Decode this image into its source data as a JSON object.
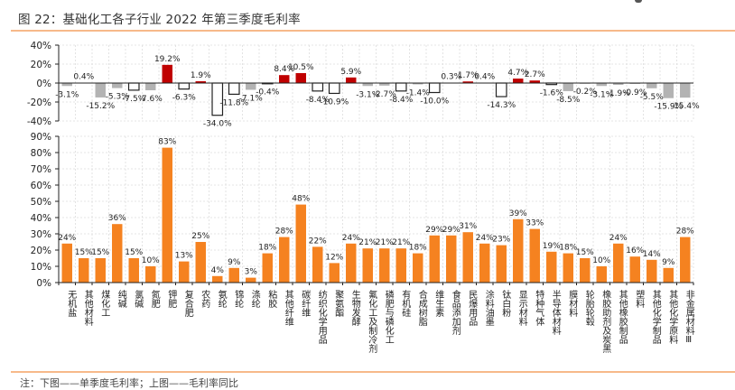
{
  "header": {
    "title": "图 22：基础化工各子行业 2022 年第三季度毛利率"
  },
  "footer": {
    "note": "注：下图——单季度毛利率；上图——毛利率同比"
  },
  "chart_data": [
    {
      "id": "yoy",
      "type": "bar",
      "title": "毛利率同比",
      "ylabel": "",
      "xlabel": "",
      "ylim": [
        -40,
        40
      ],
      "yticks": [
        40,
        20,
        0,
        -20,
        -40
      ],
      "ytick_labels": [
        "40%",
        "20%",
        "0%",
        "-20%",
        "-40%"
      ],
      "grid": true,
      "legend": "none",
      "value_suffix": "%",
      "style_colors": {
        "gray": "#b3b3b3",
        "red": "#c00000",
        "hollow": "#ffffff",
        "hollow_stroke": "#222222"
      },
      "categories": [
        "无机盐",
        "其他材料",
        "煤化工",
        "纯碱",
        "氯碱",
        "氮肥",
        "钾肥",
        "复合肥",
        "农药",
        "氨纶",
        "锦纶",
        "涤纶",
        "粘胶",
        "其他纤维",
        "碳纤维",
        "纺织化学用品",
        "聚氨酯",
        "生物发酵",
        "氟化工及制冷剂",
        "磷肥与磷化工",
        "有机硅",
        "合成树脂",
        "维生素",
        "食品添加剂",
        "民爆用品",
        "涂料油墨",
        "钛白粉",
        "显示材料",
        "特种气体",
        "半导体材料",
        "膜材料",
        "轮胎轮毂",
        "橡胶助剂及炭黑",
        "其他橡胶制品",
        "塑料",
        "其他化学制品",
        "其他化学原料",
        "非金属材料Ⅲ"
      ],
      "values": [
        -3.1,
        0.4,
        -15.2,
        -5.3,
        -7.5,
        -7.6,
        19.2,
        -6.3,
        1.9,
        -34.0,
        -11.8,
        -7.1,
        -0.4,
        8.4,
        10.5,
        -8.4,
        -10.9,
        5.9,
        -3.1,
        -2.7,
        -8.4,
        -1.4,
        -10.0,
        0.3,
        1.7,
        0.4,
        -14.3,
        4.7,
        2.7,
        -1.6,
        -8.5,
        -0.2,
        -3.1,
        -1.9,
        -0.9,
        -5.5,
        -15.9,
        -15.4
      ],
      "labels": [
        "-3.1%",
        "0.4%",
        "-15.2%",
        "-5.3%",
        "-7.5%",
        "-7.6%",
        "19.2%",
        "-6.3%",
        "1.9%",
        "-34.0%",
        "-11.8%",
        "-7.1%",
        "-0.4%",
        "8.4%",
        "10.5%",
        "-8.4%",
        "-10.9%",
        "5.9%",
        "-3.1%",
        "-2.7%",
        "-8.4%",
        "-1.4%",
        "-10.0%",
        "0.3%",
        "1.7%",
        "0.4%",
        "-14.3%",
        "4.7%",
        "2.7%",
        "-1.6%",
        "-8.5%",
        "-0.2%",
        "-3.1%",
        "-1.9%",
        "-0.9%",
        "-5.5%",
        "-15.9%",
        "-15.4%"
      ],
      "styles": [
        "gray",
        "red",
        "gray",
        "gray",
        "hollow",
        "gray",
        "red",
        "hollow",
        "red",
        "hollow",
        "hollow",
        "gray",
        "hollow",
        "red",
        "red",
        "hollow",
        "hollow",
        "red",
        "gray",
        "gray",
        "hollow",
        "gray",
        "hollow",
        "red",
        "red",
        "red",
        "hollow",
        "red",
        "red",
        "hollow",
        "gray",
        "gray",
        "gray",
        "gray",
        "gray",
        "gray",
        "gray",
        "gray"
      ]
    },
    {
      "id": "margin",
      "type": "bar",
      "title": "单季度毛利率",
      "ylabel": "",
      "xlabel": "",
      "ylim": [
        0,
        90
      ],
      "yticks": [
        90,
        80,
        70,
        60,
        50,
        40,
        30,
        20,
        10,
        0
      ],
      "ytick_labels": [
        "90%",
        "80%",
        "70%",
        "60%",
        "50%",
        "40%",
        "30%",
        "20%",
        "10%",
        "0%"
      ],
      "grid": true,
      "legend": "none",
      "color": "#f58220",
      "categories": [
        "无机盐",
        "其他材料",
        "煤化工",
        "纯碱",
        "氯碱",
        "氮肥",
        "钾肥",
        "复合肥",
        "农药",
        "氨纶",
        "锦纶",
        "涤纶",
        "粘胶",
        "其他纤维",
        "碳纤维",
        "纺织化学用品",
        "聚氨酯",
        "生物发酵",
        "氟化工及制冷剂",
        "磷肥与磷化工",
        "有机硅",
        "合成树脂",
        "维生素",
        "食品添加剂",
        "民爆用品",
        "涂料油墨",
        "钛白粉",
        "显示材料",
        "特种气体",
        "半导体材料",
        "膜材料",
        "轮胎轮毂",
        "橡胶助剂及炭黑",
        "其他橡胶制品",
        "塑料",
        "其他化学制品",
        "其他化学原料",
        "非金属材料Ⅲ"
      ],
      "values": [
        24,
        15,
        15,
        36,
        15,
        10,
        83,
        13,
        25,
        4,
        9,
        3,
        18,
        28,
        48,
        22,
        12,
        24,
        21,
        21,
        21,
        18,
        29,
        29,
        31,
        24,
        23,
        39,
        33,
        19,
        18,
        15,
        10,
        24,
        16,
        14,
        9,
        28
      ],
      "labels": [
        "24%",
        "15%",
        "15%",
        "36%",
        "15%",
        "10%",
        "83%",
        "13%",
        "25%",
        "4%",
        "9%",
        "3%",
        "18%",
        "28%",
        "48%",
        "22%",
        "12%",
        "24%",
        "21%",
        "21%",
        "21%",
        "18%",
        "29%",
        "29%",
        "31%",
        "24%",
        "23%",
        "39%",
        "33%",
        "19%",
        "18%",
        "15%",
        "10%",
        "24%",
        "16%",
        "14%",
        "9%",
        "28%"
      ]
    }
  ]
}
